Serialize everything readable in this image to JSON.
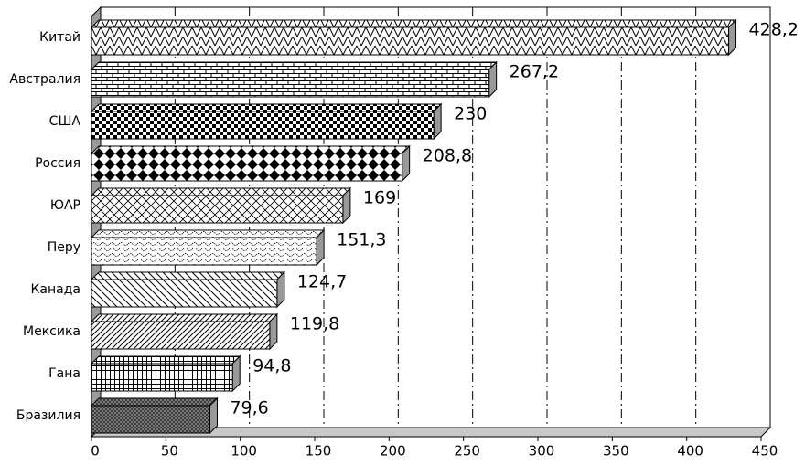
{
  "chart_data": {
    "type": "barh",
    "categories": [
      "Китай",
      "Австралия",
      "США",
      "Россия",
      "ЮАР",
      "Перу",
      "Канада",
      "Мексика",
      "Гана",
      "Бразилия"
    ],
    "values": [
      428.2,
      267.2,
      230,
      208.8,
      169,
      151.3,
      124.7,
      119.8,
      94.8,
      79.6
    ],
    "value_labels": [
      "428,2",
      "267,2",
      "230",
      "208,8",
      "169",
      "151,3",
      "124,7",
      "119,8",
      "94,8",
      "79,6"
    ],
    "xlim": [
      0,
      450
    ],
    "xticks": [
      0,
      50,
      100,
      150,
      200,
      250,
      300,
      350,
      400,
      450
    ],
    "grid": true
  }
}
